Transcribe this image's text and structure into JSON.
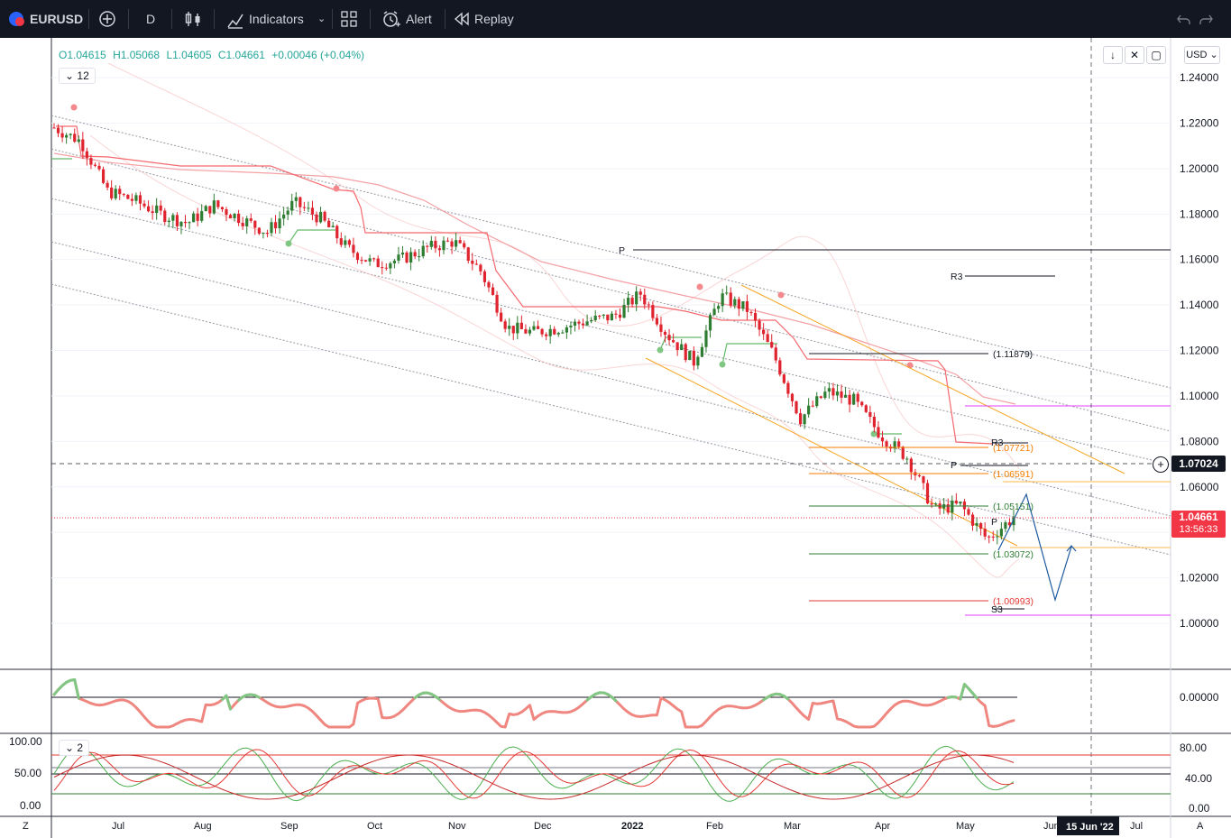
{
  "toolbar": {
    "symbol": "EURUSD",
    "interval": "D",
    "indicators": "Indicators",
    "alert": "Alert",
    "replay": "Replay"
  },
  "legend": {
    "open": "O1.04615",
    "high": "H1.05068",
    "low": "L1.04605",
    "close": "C1.04661",
    "change": "+0.00046 (+0.04%)",
    "collapse_count": "12",
    "sub_count": "2"
  },
  "currency": "USD",
  "price_axis": [
    "1.24000",
    "1.22000",
    "1.20000",
    "1.18000",
    "1.16000",
    "1.14000",
    "1.12000",
    "1.10000",
    "1.08000",
    "1.06000",
    "1.04000",
    "1.02000",
    "1.00000"
  ],
  "osc_axis": [
    "0.00000"
  ],
  "stoch_axis_right": [
    "80.00",
    "40.00",
    "0.00"
  ],
  "stoch_axis_left": [
    "100.00",
    "50.00",
    "0.00"
  ],
  "time_axis": [
    "Jul",
    "Aug",
    "Sep",
    "Oct",
    "Nov",
    "Dec",
    "2022",
    "Feb",
    "Mar",
    "Apr",
    "May",
    "Jun",
    "Jul"
  ],
  "crosshair_date": "15 Jun '22",
  "crosshair_price": "1.07024",
  "last_price": "1.04661",
  "countdown": "13:56:33",
  "corner_left": "Z",
  "corner_right": "A",
  "annotations": {
    "p1": "P",
    "r3a": "R3",
    "fib1": "(1.11879)",
    "r3b": "R3",
    "fib2": "(1.07721)",
    "p2": "P",
    "fib3": "(1.06591)",
    "fib4": "(1.05151)",
    "p3": "P",
    "fib5": "(1.03072)",
    "fib6": "(1.00993)",
    "s3": "S3"
  },
  "colors": {
    "up": "#26a69a",
    "candle_up": "#2e7d32",
    "candle_down": "#e0242f",
    "accent": "#2962ff",
    "topbar": "#131722",
    "last_price_bg": "#f23645"
  },
  "chart_data": {
    "type": "candlestick",
    "symbol": "EURUSD",
    "interval": "D",
    "ylim": [
      0.985,
      1.245
    ],
    "last": {
      "open": 1.04615,
      "high": 1.05068,
      "low": 1.04605,
      "close": 1.04661
    },
    "close_path": [
      {
        "x": "Jun",
        "y": 1.218
      },
      {
        "x": "Jun",
        "y": 1.212
      },
      {
        "x": "Jun",
        "y": 1.19
      },
      {
        "x": "Jul",
        "y": 1.186
      },
      {
        "x": "Jul",
        "y": 1.18
      },
      {
        "x": "Jul",
        "y": 1.176
      },
      {
        "x": "Aug",
        "y": 1.184
      },
      {
        "x": "Aug",
        "y": 1.178
      },
      {
        "x": "Aug",
        "y": 1.172
      },
      {
        "x": "Sep",
        "y": 1.185
      },
      {
        "x": "Sep",
        "y": 1.178
      },
      {
        "x": "Sep",
        "y": 1.165
      },
      {
        "x": "Oct",
        "y": 1.158
      },
      {
        "x": "Oct",
        "y": 1.16
      },
      {
        "x": "Oct",
        "y": 1.165
      },
      {
        "x": "Nov",
        "y": 1.168
      },
      {
        "x": "Nov",
        "y": 1.155
      },
      {
        "x": "Nov",
        "y": 1.13
      },
      {
        "x": "Dec",
        "y": 1.128
      },
      {
        "x": "Dec",
        "y": 1.13
      },
      {
        "x": "Dec",
        "y": 1.133
      },
      {
        "x": "2022",
        "y": 1.135
      },
      {
        "x": "2022",
        "y": 1.145
      },
      {
        "x": "2022",
        "y": 1.127
      },
      {
        "x": "Feb",
        "y": 1.115
      },
      {
        "x": "Feb",
        "y": 1.144
      },
      {
        "x": "Feb",
        "y": 1.138
      },
      {
        "x": "Mar",
        "y": 1.118
      },
      {
        "x": "Mar",
        "y": 1.09
      },
      {
        "x": "Mar",
        "y": 1.102
      },
      {
        "x": "Apr",
        "y": 1.098
      },
      {
        "x": "Apr",
        "y": 1.083
      },
      {
        "x": "Apr",
        "y": 1.073
      },
      {
        "x": "May",
        "y": 1.05
      },
      {
        "x": "May",
        "y": 1.052
      },
      {
        "x": "May",
        "y": 1.037
      },
      {
        "x": "May",
        "y": 1.04661
      }
    ],
    "levels": [
      {
        "label": "P",
        "y": 1.1648
      },
      {
        "label": "R3",
        "y": 1.152
      },
      {
        "label": "(1.11879)",
        "y": 1.11879
      },
      {
        "label": "R3",
        "y": 1.0785
      },
      {
        "label": "(1.07721)",
        "y": 1.07721
      },
      {
        "label": "P",
        "y": 1.0702
      },
      {
        "label": "(1.06591)",
        "y": 1.06591
      },
      {
        "label": "(1.05151)",
        "y": 1.05151
      },
      {
        "label": "(1.03072)",
        "y": 1.03072
      },
      {
        "label": "(1.00993)",
        "y": 1.00993
      },
      {
        "label": "S3",
        "y": 1.0063
      }
    ]
  }
}
